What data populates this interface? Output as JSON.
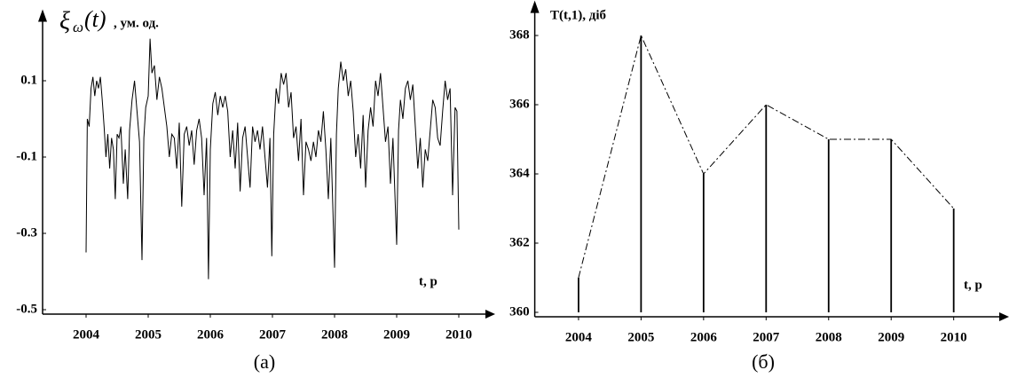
{
  "chart_data": [
    {
      "type": "line",
      "ylabel_symbol": "ξ",
      "ylabel_subscript": "ω",
      "ylabel_arg": "(t)",
      "ylabel_unit": ", ум. од.",
      "xlabel": "t, р",
      "caption": "(а)",
      "color": "#000000",
      "xlim": [
        2003.3,
        2010.4
      ],
      "ylim": [
        -0.5,
        0.25
      ],
      "xticks": [
        2004,
        2005,
        2006,
        2007,
        2008,
        2009,
        2010
      ],
      "yticks": [
        0.1,
        -0.1,
        -0.3,
        -0.5
      ],
      "x": [
        2004.0,
        2004.02,
        2004.05,
        2004.08,
        2004.11,
        2004.14,
        2004.17,
        2004.2,
        2004.23,
        2004.26,
        2004.29,
        2004.32,
        2004.35,
        2004.38,
        2004.41,
        2004.44,
        2004.47,
        2004.5,
        2004.53,
        2004.56,
        2004.6,
        2004.63,
        2004.67,
        2004.7,
        2004.74,
        2004.78,
        2004.82,
        2004.86,
        2004.9,
        2004.93,
        2004.96,
        2005.0,
        2005.03,
        2005.06,
        2005.1,
        2005.14,
        2005.18,
        2005.22,
        2005.26,
        2005.3,
        2005.34,
        2005.38,
        2005.42,
        2005.46,
        2005.5,
        2005.54,
        2005.58,
        2005.62,
        2005.66,
        2005.7,
        2005.74,
        2005.78,
        2005.82,
        2005.86,
        2005.9,
        2005.94,
        2005.97,
        2006.0,
        2006.04,
        2006.08,
        2006.12,
        2006.16,
        2006.2,
        2006.24,
        2006.28,
        2006.32,
        2006.36,
        2006.4,
        2006.44,
        2006.48,
        2006.52,
        2006.56,
        2006.6,
        2006.64,
        2006.68,
        2006.72,
        2006.76,
        2006.8,
        2006.84,
        2006.88,
        2006.92,
        2006.96,
        2006.99,
        2007.02,
        2007.06,
        2007.1,
        2007.14,
        2007.18,
        2007.22,
        2007.26,
        2007.3,
        2007.34,
        2007.38,
        2007.42,
        2007.46,
        2007.5,
        2007.54,
        2007.58,
        2007.62,
        2007.66,
        2007.7,
        2007.74,
        2007.78,
        2007.82,
        2007.86,
        2007.9,
        2007.94,
        2008.0,
        2008.03,
        2008.06,
        2008.1,
        2008.14,
        2008.18,
        2008.22,
        2008.26,
        2008.3,
        2008.34,
        2008.38,
        2008.42,
        2008.46,
        2008.5,
        2008.54,
        2008.58,
        2008.62,
        2008.66,
        2008.7,
        2008.74,
        2008.78,
        2008.82,
        2008.86,
        2008.9,
        2008.94,
        2009.0,
        2009.03,
        2009.06,
        2009.1,
        2009.14,
        2009.18,
        2009.22,
        2009.26,
        2009.3,
        2009.34,
        2009.38,
        2009.42,
        2009.46,
        2009.5,
        2009.54,
        2009.58,
        2009.62,
        2009.66,
        2009.7,
        2009.74,
        2009.78,
        2009.82,
        2009.86,
        2009.9,
        2009.94,
        2009.97,
        2010.0
      ],
      "values": [
        -0.35,
        0.0,
        -0.02,
        0.08,
        0.11,
        0.06,
        0.1,
        0.08,
        0.11,
        0.05,
        -0.02,
        -0.1,
        -0.04,
        -0.13,
        -0.05,
        -0.08,
        -0.21,
        -0.04,
        -0.05,
        -0.02,
        -0.17,
        -0.08,
        -0.21,
        -0.03,
        0.05,
        0.1,
        0.02,
        -0.06,
        -0.37,
        -0.05,
        0.03,
        0.06,
        0.21,
        0.12,
        0.14,
        0.05,
        0.11,
        0.08,
        0.03,
        -0.02,
        -0.1,
        -0.04,
        -0.05,
        -0.13,
        -0.01,
        -0.23,
        -0.04,
        -0.02,
        -0.07,
        -0.03,
        -0.12,
        -0.03,
        0.0,
        -0.05,
        -0.2,
        -0.05,
        -0.42,
        -0.08,
        0.04,
        0.07,
        0.01,
        0.06,
        0.03,
        0.06,
        0.02,
        -0.1,
        -0.03,
        -0.13,
        -0.01,
        -0.19,
        -0.05,
        -0.02,
        -0.1,
        -0.18,
        -0.02,
        -0.06,
        -0.03,
        -0.08,
        -0.02,
        -0.1,
        -0.18,
        -0.05,
        -0.36,
        -0.04,
        0.08,
        0.04,
        0.12,
        0.09,
        0.12,
        0.03,
        0.07,
        -0.05,
        -0.02,
        -0.11,
        0.0,
        -0.2,
        -0.06,
        -0.08,
        -0.11,
        -0.06,
        -0.1,
        -0.03,
        -0.06,
        0.02,
        -0.08,
        -0.21,
        -0.05,
        -0.39,
        -0.04,
        0.08,
        0.15,
        0.1,
        0.13,
        0.06,
        0.1,
        0.02,
        -0.1,
        -0.04,
        -0.13,
        0.01,
        -0.18,
        -0.03,
        0.03,
        -0.02,
        0.1,
        0.06,
        0.12,
        0.03,
        -0.06,
        -0.02,
        -0.17,
        -0.05,
        -0.33,
        -0.03,
        0.05,
        0.0,
        0.08,
        0.1,
        0.05,
        0.09,
        -0.02,
        -0.13,
        -0.05,
        -0.18,
        -0.08,
        -0.11,
        -0.03,
        0.05,
        0.03,
        -0.05,
        -0.07,
        0.02,
        0.1,
        0.05,
        0.08,
        -0.2,
        0.03,
        0.02,
        -0.29
      ]
    },
    {
      "type": "stem",
      "ylabel": "T(t,1), діб",
      "xlabel": "t, р",
      "caption": "(б)",
      "color": "#000000",
      "xlim": [
        2003.3,
        2010.7
      ],
      "ylim": [
        360,
        368.6
      ],
      "xticks": [
        2004,
        2005,
        2006,
        2007,
        2008,
        2009,
        2010
      ],
      "yticks": [
        360,
        362,
        364,
        366,
        368
      ],
      "x": [
        2004,
        2005,
        2006,
        2007,
        2008,
        2009,
        2010
      ],
      "values": [
        361,
        368,
        364,
        366,
        365,
        365,
        363
      ]
    }
  ]
}
